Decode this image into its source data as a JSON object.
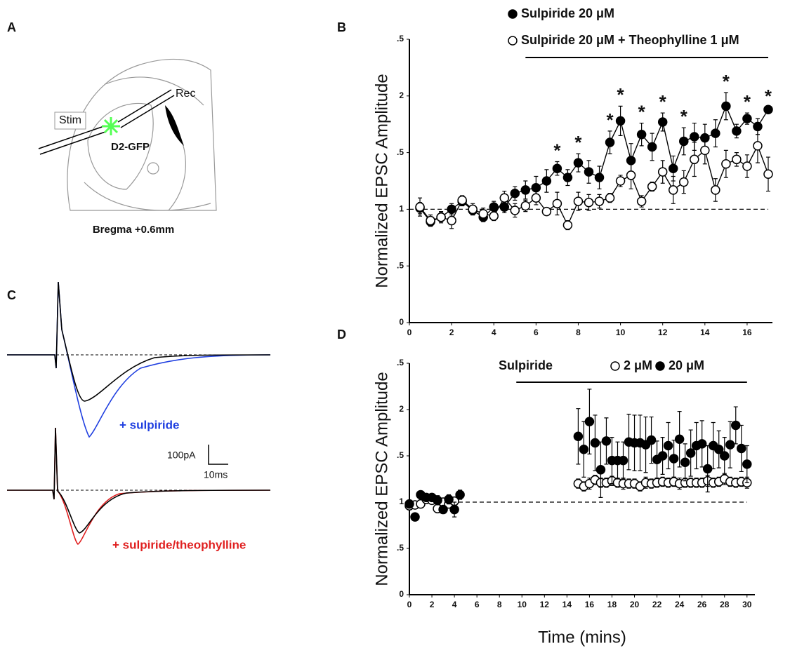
{
  "panel_labels": [
    "A",
    "B",
    "C",
    "D"
  ],
  "panel_a": {
    "stim": "Stim",
    "rec": "Rec",
    "cell": "D2-GFP",
    "caption": "Bregma +0.6mm"
  },
  "panel_c": {
    "trace_labels": [
      "+ sulpiride",
      "+ sulpiride/theophylline"
    ],
    "scale_y": "100pA",
    "scale_x": "10ms"
  },
  "chart_data": [
    {
      "type": "line",
      "ylabel": "Normalized EPSC Amplitude",
      "xlim": [
        0,
        17.2
      ],
      "ylim": [
        0,
        2.5
      ],
      "xticks": [
        0,
        2,
        4,
        6,
        8,
        10,
        12,
        14,
        16
      ],
      "yticks": [
        0,
        {
          "value": 0.5,
          "label": ".5"
        },
        1,
        {
          "value": 1.5,
          "label": ".5"
        },
        2,
        {
          "value": 2.5,
          "label": ".5"
        }
      ],
      "baseline": 1,
      "treatment_period": [
        5.5,
        17
      ],
      "x": [
        0.5,
        1,
        1.5,
        2,
        2.5,
        3,
        3.5,
        4,
        4.5,
        5,
        5.5,
        6,
        6.5,
        7,
        7.5,
        8,
        8.5,
        9,
        9.5,
        10,
        10.5,
        11,
        11.5,
        12,
        12.5,
        13,
        13.5,
        14,
        14.5,
        15,
        15.5,
        16,
        16.5,
        17
      ],
      "series": [
        {
          "name": "Sulpiride 20 μM",
          "color": "#000000",
          "values": [
            1.01,
            0.89,
            0.93,
            1.0,
            1.07,
            0.99,
            0.93,
            1.02,
            1.02,
            1.14,
            1.17,
            1.19,
            1.25,
            1.36,
            1.28,
            1.41,
            1.33,
            1.28,
            1.59,
            1.78,
            1.43,
            1.66,
            1.55,
            1.77,
            1.36,
            1.6,
            1.64,
            1.63,
            1.67,
            1.91,
            1.69,
            1.8,
            1.73,
            1.88
          ],
          "errors": [
            0.05,
            0.04,
            0.04,
            0.05,
            0.04,
            0.04,
            0.04,
            0.05,
            0.05,
            0.06,
            0.08,
            0.1,
            0.1,
            0.06,
            0.07,
            0.08,
            0.1,
            0.1,
            0.1,
            0.13,
            0.15,
            0.1,
            0.12,
            0.08,
            0.11,
            0.12,
            0.12,
            0.12,
            0.12,
            0.12,
            0.06,
            0.05,
            0.07,
            0.02
          ]
        },
        {
          "name": "Sulpiride 20 μM + Theophylline 1 μM",
          "color": "#ffffff",
          "values": [
            1.02,
            0.9,
            0.93,
            0.9,
            1.08,
            1.0,
            0.96,
            0.94,
            1.1,
            0.99,
            1.03,
            1.1,
            0.98,
            1.05,
            0.86,
            1.07,
            1.06,
            1.07,
            1.1,
            1.25,
            1.3,
            1.07,
            1.2,
            1.33,
            1.17,
            1.24,
            1.44,
            1.52,
            1.17,
            1.4,
            1.44,
            1.38,
            1.56,
            1.31
          ],
          "errors": [
            0.08,
            0.05,
            0.05,
            0.07,
            0.04,
            0.05,
            0.05,
            0.04,
            0.06,
            0.06,
            0.05,
            0.06,
            0.03,
            0.1,
            0.04,
            0.08,
            0.07,
            0.06,
            0.04,
            0.05,
            0.12,
            0.05,
            0.04,
            0.1,
            0.12,
            0.1,
            0.15,
            0.12,
            0.1,
            0.12,
            0.06,
            0.1,
            0.15,
            0.15
          ]
        }
      ],
      "annotations": [
        {
          "x": 7,
          "text": "*"
        },
        {
          "x": 8,
          "text": "*"
        },
        {
          "x": 9.5,
          "text": "*"
        },
        {
          "x": 10,
          "text": "*"
        },
        {
          "x": 11,
          "text": "*"
        },
        {
          "x": 12,
          "text": "*"
        },
        {
          "x": 13,
          "text": "*"
        },
        {
          "x": 15,
          "text": "*"
        },
        {
          "x": 16,
          "text": "*"
        },
        {
          "x": 17,
          "text": "*"
        }
      ]
    },
    {
      "type": "scatter",
      "ylabel": "Normalized EPSC Amplitude",
      "xlabel": "Time (mins)",
      "xlim": [
        0,
        30.7
      ],
      "ylim": [
        0,
        2.5
      ],
      "xticks": [
        0,
        2,
        4,
        6,
        8,
        10,
        12,
        14,
        16,
        18,
        20,
        22,
        24,
        26,
        28,
        30
      ],
      "yticks": [
        0,
        {
          "value": 0.5,
          "label": ".5"
        },
        1,
        {
          "value": 1.5,
          "label": ".5"
        },
        2,
        {
          "value": 2.5,
          "label": ".5"
        }
      ],
      "baseline": 1,
      "treatment_period": [
        9.5,
        30
      ],
      "legend_title": "Sulpiride",
      "x": [
        0,
        0.5,
        1,
        1.5,
        2,
        2.5,
        3,
        3.5,
        4,
        4.5,
        5,
        5.5,
        6,
        6.5,
        7,
        7.5,
        8,
        8.5,
        9,
        9.5,
        10,
        10.5,
        11,
        11.5,
        12,
        12.5,
        13,
        13.5,
        14,
        14.5,
        15,
        15.5,
        16,
        16.5,
        17,
        17.5,
        18,
        18.5,
        19,
        19.5,
        20,
        20.5,
        21,
        21.5,
        22,
        22.5,
        23,
        23.5,
        24,
        24.5,
        25,
        25.5,
        26,
        26.5,
        27,
        27.5,
        28,
        28.5,
        29,
        29.5,
        30
      ],
      "series": [
        {
          "name": "2 μM",
          "color": "#ffffff",
          "values": [
            0.96,
            0.97,
            0.98,
            1.03,
            1.02,
            0.93,
            1.0,
            0.98,
            1.01,
            null,
            null,
            null,
            null,
            null,
            null,
            null,
            null,
            null,
            null,
            null,
            null,
            null,
            null,
            null,
            null,
            null,
            null,
            null,
            null,
            null,
            1.2,
            1.17,
            1.2,
            1.24,
            1.21,
            1.21,
            1.23,
            1.21,
            1.2,
            1.2,
            1.2,
            1.17,
            1.21,
            1.2,
            1.21,
            1.22,
            1.21,
            1.22,
            1.2,
            1.21,
            1.21,
            1.21,
            1.21,
            1.23,
            1.21,
            1.22,
            1.25,
            1.22,
            1.21,
            1.22,
            1.21
          ],
          "errors": [
            0.04,
            0.03,
            0.03,
            0.04,
            0.03,
            0.04,
            0.04,
            0.03,
            0.04,
            null,
            null,
            null,
            null,
            null,
            null,
            null,
            null,
            null,
            null,
            null,
            null,
            null,
            null,
            null,
            null,
            null,
            null,
            null,
            null,
            null,
            0.05,
            0.05,
            0.06,
            0.05,
            0.05,
            0.05,
            0.05,
            0.05,
            0.06,
            0.05,
            0.05,
            0.05,
            0.06,
            0.05,
            0.05,
            0.05,
            0.05,
            0.05,
            0.06,
            0.05,
            0.05,
            0.05,
            0.05,
            0.06,
            0.05,
            0.05,
            0.06,
            0.05,
            0.05,
            0.05,
            0.06
          ]
        },
        {
          "name": "20 μM",
          "color": "#000000",
          "values": [
            0.98,
            0.84,
            1.08,
            1.05,
            1.05,
            1.02,
            0.92,
            1.03,
            0.92,
            1.08,
            null,
            null,
            null,
            null,
            null,
            null,
            null,
            null,
            null,
            null,
            null,
            null,
            null,
            null,
            null,
            null,
            null,
            null,
            null,
            null,
            1.71,
            1.57,
            1.87,
            1.64,
            1.35,
            1.66,
            1.45,
            1.45,
            1.45,
            1.65,
            1.64,
            1.64,
            1.62,
            1.67,
            1.46,
            1.5,
            1.61,
            1.47,
            1.68,
            1.43,
            1.53,
            1.61,
            1.63,
            1.36,
            1.61,
            1.57,
            1.5,
            1.62,
            1.83,
            1.58,
            1.41
          ],
          "errors": [
            0.04,
            0.03,
            0.04,
            0.04,
            0.04,
            0.05,
            0.04,
            0.05,
            0.08,
            0.05,
            null,
            null,
            null,
            null,
            null,
            null,
            null,
            null,
            null,
            null,
            null,
            null,
            null,
            null,
            null,
            null,
            null,
            null,
            null,
            null,
            0.3,
            0.3,
            0.35,
            0.3,
            0.3,
            0.25,
            0.25,
            0.2,
            0.2,
            0.3,
            0.3,
            0.3,
            0.3,
            0.25,
            0.2,
            0.2,
            0.25,
            0.2,
            0.3,
            0.2,
            0.25,
            0.25,
            0.25,
            0.25,
            0.25,
            0.2,
            0.2,
            0.25,
            0.2,
            0.25,
            0.2
          ]
        }
      ]
    }
  ]
}
